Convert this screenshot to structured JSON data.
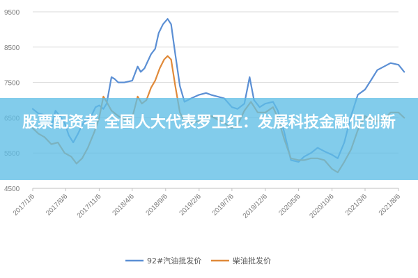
{
  "chart_data": {
    "type": "line",
    "x_ticks": [
      "2017/1/6",
      "2017/6/6",
      "2017/11/6",
      "2018/4/6",
      "2018/9/6",
      "2019/2/6",
      "2019/7/6",
      "2019/12/6",
      "2020/5/6",
      "2020/10/6",
      "2021/3/6",
      "2021/8/6"
    ],
    "y_ticks": [
      4500,
      5500,
      6500,
      7500,
      8500,
      9500
    ],
    "ylim": [
      4500,
      9500
    ],
    "grid": "horizontal",
    "legend_position": "bottom",
    "series": [
      {
        "name": "92#汽油批发价",
        "color": "#5b8fd4",
        "values": [
          [
            "2017-01-06",
            6750
          ],
          [
            "2017-02-01",
            6620
          ],
          [
            "2017-03-01",
            6580
          ],
          [
            "2017-04-01",
            6200
          ],
          [
            "2017-04-20",
            6700
          ],
          [
            "2017-05-10",
            6550
          ],
          [
            "2017-06-01",
            6350
          ],
          [
            "2017-06-20",
            6000
          ],
          [
            "2017-07-10",
            5800
          ],
          [
            "2017-08-01",
            6050
          ],
          [
            "2017-08-20",
            6300
          ],
          [
            "2017-09-10",
            6450
          ],
          [
            "2017-10-01",
            6550
          ],
          [
            "2017-10-20",
            6800
          ],
          [
            "2017-11-06",
            6850
          ],
          [
            "2017-11-25",
            6750
          ],
          [
            "2017-12-10",
            6900
          ],
          [
            "2018-01-01",
            7650
          ],
          [
            "2018-01-15",
            7600
          ],
          [
            "2018-02-01",
            7500
          ],
          [
            "2018-03-01",
            7500
          ],
          [
            "2018-04-06",
            7550
          ],
          [
            "2018-05-01",
            7950
          ],
          [
            "2018-05-15",
            7800
          ],
          [
            "2018-06-01",
            7900
          ],
          [
            "2018-07-01",
            8300
          ],
          [
            "2018-07-20",
            8450
          ],
          [
            "2018-08-05",
            8900
          ],
          [
            "2018-08-25",
            9150
          ],
          [
            "2018-09-15",
            9300
          ],
          [
            "2018-10-01",
            9150
          ],
          [
            "2018-10-20",
            8300
          ],
          [
            "2018-11-10",
            7400
          ],
          [
            "2018-12-01",
            6950
          ],
          [
            "2019-01-01",
            7050
          ],
          [
            "2019-02-06",
            7150
          ],
          [
            "2019-03-10",
            7200
          ],
          [
            "2019-04-01",
            7150
          ],
          [
            "2019-05-01",
            7100
          ],
          [
            "2019-06-01",
            7050
          ],
          [
            "2019-07-06",
            6800
          ],
          [
            "2019-08-01",
            6750
          ],
          [
            "2019-09-01",
            6900
          ],
          [
            "2019-09-25",
            7650
          ],
          [
            "2019-10-15",
            7000
          ],
          [
            "2019-11-10",
            6800
          ],
          [
            "2019-12-06",
            6900
          ],
          [
            "2020-01-10",
            6950
          ],
          [
            "2020-02-01",
            6700
          ],
          [
            "2020-03-01",
            6100
          ],
          [
            "2020-04-01",
            5300
          ],
          [
            "2020-05-06",
            5250
          ],
          [
            "2020-06-01",
            5400
          ],
          [
            "2020-07-01",
            5500
          ],
          [
            "2020-08-01",
            5650
          ],
          [
            "2020-09-01",
            5550
          ],
          [
            "2020-10-06",
            5450
          ],
          [
            "2020-11-01",
            5350
          ],
          [
            "2020-12-01",
            5800
          ],
          [
            "2021-01-01",
            6550
          ],
          [
            "2021-02-01",
            7150
          ],
          [
            "2021-03-06",
            7300
          ],
          [
            "2021-04-01",
            7550
          ],
          [
            "2021-05-01",
            7850
          ],
          [
            "2021-06-01",
            7950
          ],
          [
            "2021-07-01",
            8050
          ],
          [
            "2021-08-06",
            8000
          ],
          [
            "2021-09-01",
            7800
          ]
        ]
      },
      {
        "name": "柴油批发价",
        "color": "#e08a3a",
        "values": [
          [
            "2017-01-06",
            6200
          ],
          [
            "2017-02-01",
            6050
          ],
          [
            "2017-03-01",
            5950
          ],
          [
            "2017-04-01",
            5750
          ],
          [
            "2017-05-01",
            5800
          ],
          [
            "2017-06-01",
            5500
          ],
          [
            "2017-07-01",
            5400
          ],
          [
            "2017-07-25",
            5200
          ],
          [
            "2017-08-20",
            5350
          ],
          [
            "2017-09-15",
            5650
          ],
          [
            "2017-10-15",
            6100
          ],
          [
            "2017-11-06",
            6500
          ],
          [
            "2017-11-25",
            7100
          ],
          [
            "2017-12-10",
            6950
          ],
          [
            "2018-01-01",
            6700
          ],
          [
            "2018-02-01",
            6550
          ],
          [
            "2018-03-01",
            6450
          ],
          [
            "2018-04-06",
            6500
          ],
          [
            "2018-05-01",
            7100
          ],
          [
            "2018-05-20",
            6900
          ],
          [
            "2018-06-10",
            7000
          ],
          [
            "2018-07-01",
            7350
          ],
          [
            "2018-07-20",
            7550
          ],
          [
            "2018-08-10",
            7900
          ],
          [
            "2018-08-30",
            8150
          ],
          [
            "2018-09-15",
            8250
          ],
          [
            "2018-10-01",
            8150
          ],
          [
            "2018-10-20",
            7400
          ],
          [
            "2018-11-10",
            6650
          ],
          [
            "2018-12-01",
            6400
          ],
          [
            "2019-01-01",
            6350
          ],
          [
            "2019-02-06",
            6400
          ],
          [
            "2019-03-10",
            6500
          ],
          [
            "2019-04-01",
            6550
          ],
          [
            "2019-05-01",
            6450
          ],
          [
            "2019-06-01",
            6350
          ],
          [
            "2019-07-06",
            6200
          ],
          [
            "2019-08-01",
            6300
          ],
          [
            "2019-09-01",
            6700
          ],
          [
            "2019-10-01",
            6950
          ],
          [
            "2019-11-01",
            6650
          ],
          [
            "2019-12-06",
            6650
          ],
          [
            "2020-01-10",
            6800
          ],
          [
            "2020-02-01",
            6500
          ],
          [
            "2020-03-01",
            5900
          ],
          [
            "2020-04-01",
            5350
          ],
          [
            "2020-05-06",
            5300
          ],
          [
            "2020-06-01",
            5300
          ],
          [
            "2020-07-01",
            5350
          ],
          [
            "2020-08-01",
            5350
          ],
          [
            "2020-09-01",
            5300
          ],
          [
            "2020-10-06",
            5050
          ],
          [
            "2020-11-01",
            4950
          ],
          [
            "2020-12-01",
            5250
          ],
          [
            "2021-01-01",
            5600
          ],
          [
            "2021-02-01",
            6150
          ],
          [
            "2021-03-06",
            6550
          ],
          [
            "2021-04-01",
            6450
          ],
          [
            "2021-05-01",
            6400
          ],
          [
            "2021-06-01",
            6450
          ],
          [
            "2021-07-01",
            6650
          ],
          [
            "2021-08-06",
            6650
          ],
          [
            "2021-09-01",
            6500
          ]
        ]
      }
    ]
  },
  "banner": {
    "title": "股票配资者 全国人大代表罗卫红：发展科技金融促创新"
  }
}
